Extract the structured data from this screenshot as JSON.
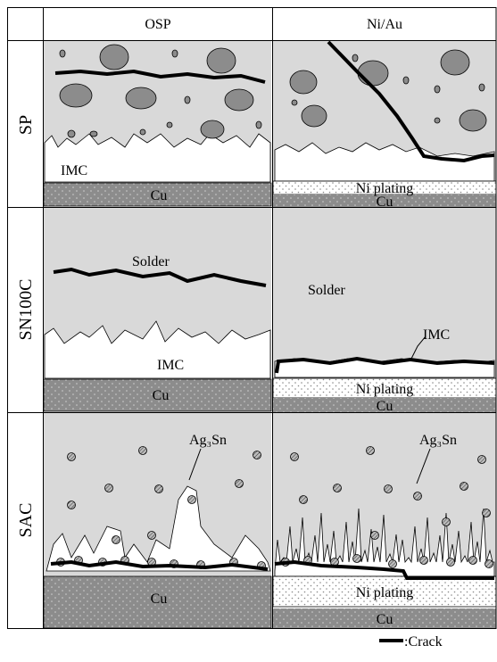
{
  "header": {
    "columns": [
      "OSP",
      "Ni/Au"
    ]
  },
  "rows": [
    {
      "label": "SP",
      "cells": [
        {
          "imc": "IMC",
          "substrate": "Cu"
        },
        {
          "plating": "Ni plating",
          "substrate": "Cu"
        }
      ]
    },
    {
      "label": "SN100C",
      "cells": [
        {
          "solder": "Solder",
          "imc": "IMC",
          "substrate": "Cu"
        },
        {
          "solder": "Solder",
          "imc": "IMC",
          "plating": "Ni plating",
          "substrate": "Cu"
        }
      ]
    },
    {
      "label": "SAC",
      "cells": [
        {
          "particle": "Ag₃Sn",
          "substrate": "Cu"
        },
        {
          "particle": "Ag₃Sn",
          "plating": "Ni plating",
          "substrate": "Cu"
        }
      ]
    }
  ],
  "legend": {
    "crack": ":Crack"
  }
}
